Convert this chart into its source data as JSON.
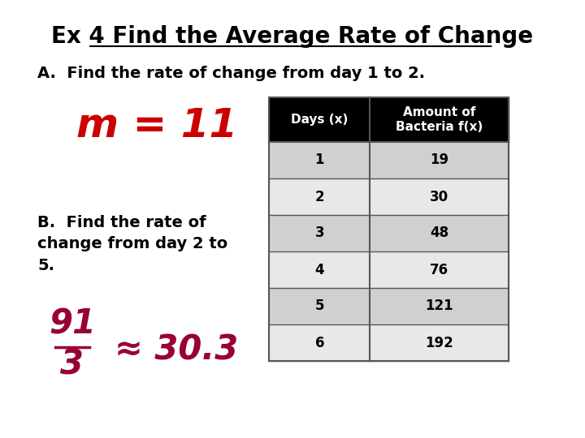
{
  "title": "Ex 4 Find the Average Rate of Change",
  "subtitle_a": "A.  Find the rate of change from day 1 to 2.",
  "m_text": "m = 11",
  "subtitle_b": "B.  Find the rate of\nchange from day 2 to\n5.",
  "fraction_num": "91",
  "fraction_den": "3",
  "approx_text": "≈ 30.3",
  "table_headers": [
    "Days (x)",
    "Amount of\nBacteria f(x)"
  ],
  "table_data": [
    [
      "1",
      "19"
    ],
    [
      "2",
      "30"
    ],
    [
      "3",
      "48"
    ],
    [
      "4",
      "76"
    ],
    [
      "5",
      "121"
    ],
    [
      "6",
      "192"
    ]
  ],
  "header_bg": "#000000",
  "header_fg": "#ffffff",
  "row_bg_odd": "#d0d0d0",
  "row_bg_even": "#e8e8e8",
  "row_fg": "#000000",
  "title_color": "#000000",
  "m_color": "#cc0000",
  "b_text_color": "#000000",
  "fraction_color": "#990033",
  "bg_color": "#ffffff"
}
